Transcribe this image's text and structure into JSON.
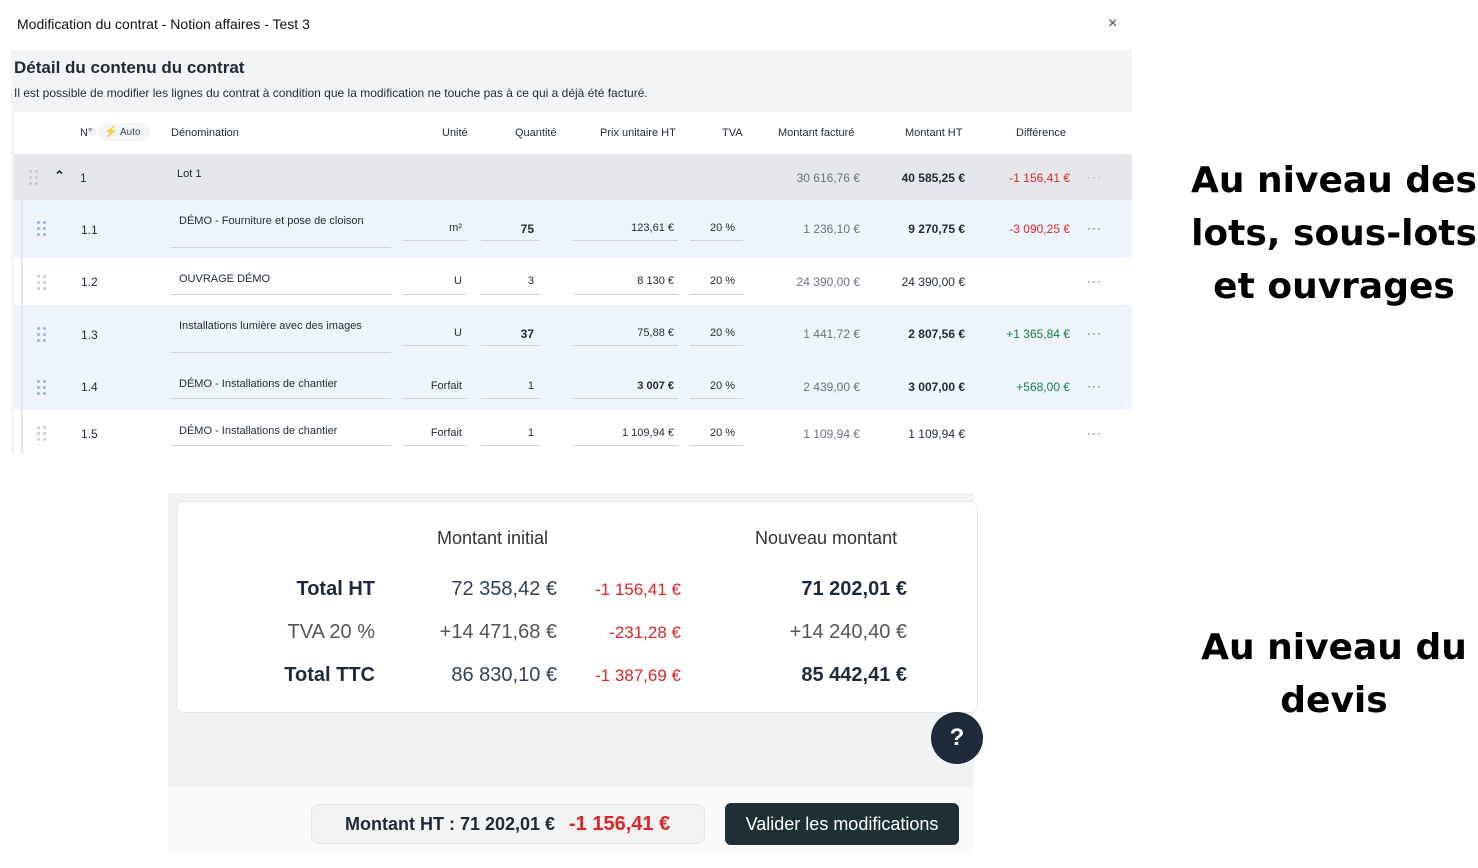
{
  "modal": {
    "title": "Modification du contrat - Notion affaires - Test 3",
    "close_glyph": "×"
  },
  "section": {
    "title": "Détail du contenu du contrat",
    "description": "Il est possible de modifier les lignes du contrat à condition que la modification ne touche pas à ce qui a déjà été facturé."
  },
  "table": {
    "headers": {
      "num": "N°",
      "auto": "Auto",
      "denomination": "Dénomination",
      "unit": "Unité",
      "quantity": "Quantité",
      "unit_price": "Prix unitaire HT",
      "vat": "TVA",
      "invoiced": "Montant facturé",
      "amount": "Montant HT",
      "difference": "Différence"
    },
    "lot": {
      "number": "1",
      "name": "Lot 1",
      "invoiced": "30 616,76 €",
      "amount": "40 585,25 €",
      "difference": "-1 156,41 €",
      "actions": "···"
    },
    "rows": [
      {
        "number": "1.1",
        "name": "DÉMO - Fourniture et pose de cloison",
        "unit": "m²",
        "quantity": "75",
        "unit_price": "123,61 €",
        "vat": "20 %",
        "invoiced": "1 236,10 €",
        "amount": "9 270,75 €",
        "difference": "-3 090,25 €",
        "actions": "···"
      },
      {
        "number": "1.2",
        "name": "OUVRAGE DÉMO",
        "unit": "U",
        "quantity": "3",
        "unit_price": "8 130 €",
        "vat": "20 %",
        "invoiced": "24 390,00 €",
        "amount": "24 390,00 €",
        "difference": "",
        "actions": "···"
      },
      {
        "number": "1.3",
        "name": "Installations lumière avec des images",
        "unit": "U",
        "quantity": "37",
        "unit_price": "75,88 €",
        "vat": "20 %",
        "invoiced": "1 441,72 €",
        "amount": "2 807,56 €",
        "difference": "+1 365,84 €",
        "actions": "···"
      },
      {
        "number": "1.4",
        "name": "DÉMO - Installations de chantier",
        "unit": "Forfait",
        "quantity": "1",
        "unit_price": "3 007 €",
        "vat": "20 %",
        "invoiced": "2 439,00 €",
        "amount": "3 007,00 €",
        "difference": "+568,00 €",
        "actions": "···"
      },
      {
        "number": "1.5",
        "name": "DÉMO - Installations de chantier",
        "unit": "Forfait",
        "quantity": "1",
        "unit_price": "1 109,94 €",
        "vat": "20 %",
        "invoiced": "1 109,94 €",
        "amount": "1 109,94 €",
        "difference": "",
        "actions": "···"
      }
    ]
  },
  "summary": {
    "col_initial": "Montant initial",
    "col_new": "Nouveau montant",
    "lines": [
      {
        "label": "Total HT",
        "initial": "72 358,42 €",
        "delta": "-1 156,41 €",
        "new": "71 202,01 €"
      },
      {
        "label": "TVA 20 %",
        "initial": "+14 471,68 €",
        "delta": "-231,28 €",
        "new": "+14 240,40 €"
      },
      {
        "label": "Total TTC",
        "initial": "86 830,10 €",
        "delta": "-1 387,69 €",
        "new": "85 442,41 €"
      }
    ]
  },
  "footer": {
    "amount_label": "Montant HT : 71 202,01 €",
    "delta": "-1 156,41 €",
    "validate_label": "Valider les modifications",
    "help_label": "?"
  },
  "annotations": {
    "top_lines": [
      "Au niveau des",
      "lots, sous-lots",
      "et ouvrages"
    ],
    "bottom_lines": [
      "Au niveau du",
      "devis"
    ]
  },
  "colors": {
    "negative": "#dc2626",
    "positive": "#15803d",
    "primary_dark": "#1e3036",
    "row_highlight": "#eef4fd"
  }
}
